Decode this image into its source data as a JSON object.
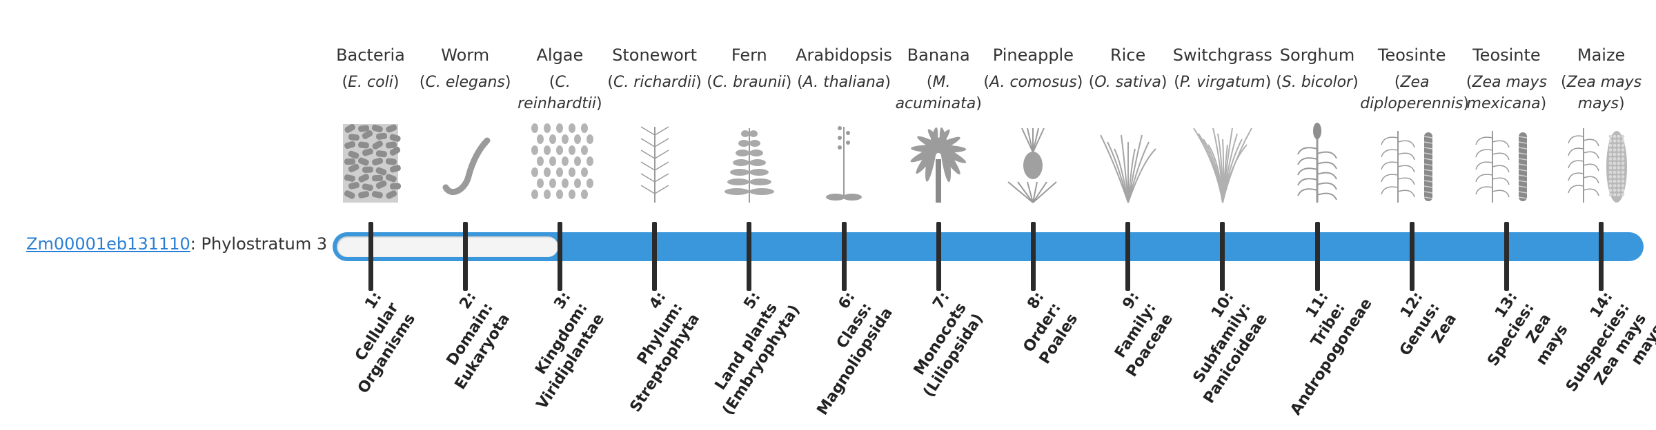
{
  "gene": {
    "id": "Zm00001eb131110",
    "suffix": ": Phylostratum 3",
    "phylostratum": 3
  },
  "strata": [
    {
      "common": "Bacteria",
      "sci": "E. coli",
      "icon": "bacteria-icon",
      "rank_lines": [
        "1:",
        "Cellular",
        "Organisms"
      ]
    },
    {
      "common": "Worm",
      "sci": "C. elegans",
      "icon": "worm-icon",
      "rank_lines": [
        "2:",
        "Domain:",
        "Eukaryota"
      ]
    },
    {
      "common": "Algae",
      "sci": "C. reinhardtii",
      "icon": "algae-icon",
      "rank_lines": [
        "3:",
        "Kingdom:",
        "Viridiplantae"
      ]
    },
    {
      "common": "Stonewort",
      "sci": "C. richardii",
      "icon": "stonewort-icon",
      "rank_lines": [
        "4:",
        "Phylum:",
        "Streptophyta"
      ]
    },
    {
      "common": "Fern",
      "sci": "C. braunii",
      "icon": "fern-icon",
      "rank_lines": [
        "5:",
        "Land plants",
        "(Embryophyta)"
      ]
    },
    {
      "common": "Arabidopsis",
      "sci": "A. thaliana",
      "icon": "arabidopsis-icon",
      "rank_lines": [
        "6:",
        "Class:",
        "Magnoliopsida"
      ]
    },
    {
      "common": "Banana",
      "sci": "M. acuminata",
      "icon": "banana-icon",
      "rank_lines": [
        "7:",
        "Monocots",
        "(Liliopsida)"
      ]
    },
    {
      "common": "Pineapple",
      "sci": "A. comosus",
      "icon": "pineapple-icon",
      "rank_lines": [
        "8:",
        "Order:",
        "Poales"
      ]
    },
    {
      "common": "Rice",
      "sci": "O. sativa",
      "icon": "rice-icon",
      "rank_lines": [
        "9:",
        "Family:",
        "Poaceae"
      ]
    },
    {
      "common": "Switchgrass",
      "sci": "P. virgatum",
      "icon": "switchgrass-icon",
      "rank_lines": [
        "10:",
        "Subfamily:",
        "Panicoideae"
      ]
    },
    {
      "common": "Sorghum",
      "sci": "S. bicolor",
      "icon": "sorghum-icon",
      "rank_lines": [
        "11:",
        "Tribe:",
        "Andropogoneae"
      ]
    },
    {
      "common": "Teosinte",
      "sci": "Zea diploperennis",
      "icon": "teosinte-icon",
      "rank_lines": [
        "12:",
        "Genus:",
        "Zea"
      ]
    },
    {
      "common": "Teosinte",
      "sci": "Zea mays mexicana",
      "icon": "teosinte-icon",
      "rank_lines": [
        "13:",
        "Species:",
        "Zea",
        "mays"
      ]
    },
    {
      "common": "Maize",
      "sci": "Zea mays mays",
      "icon": "maize-icon",
      "rank_lines": [
        "14:",
        "Subspecies:",
        "Zea mays",
        "mays"
      ]
    }
  ],
  "colors": {
    "track": "#3a97dc",
    "tick": "#2b2b2b",
    "link": "#2a7fd4",
    "icon": "#9a9a9a"
  }
}
